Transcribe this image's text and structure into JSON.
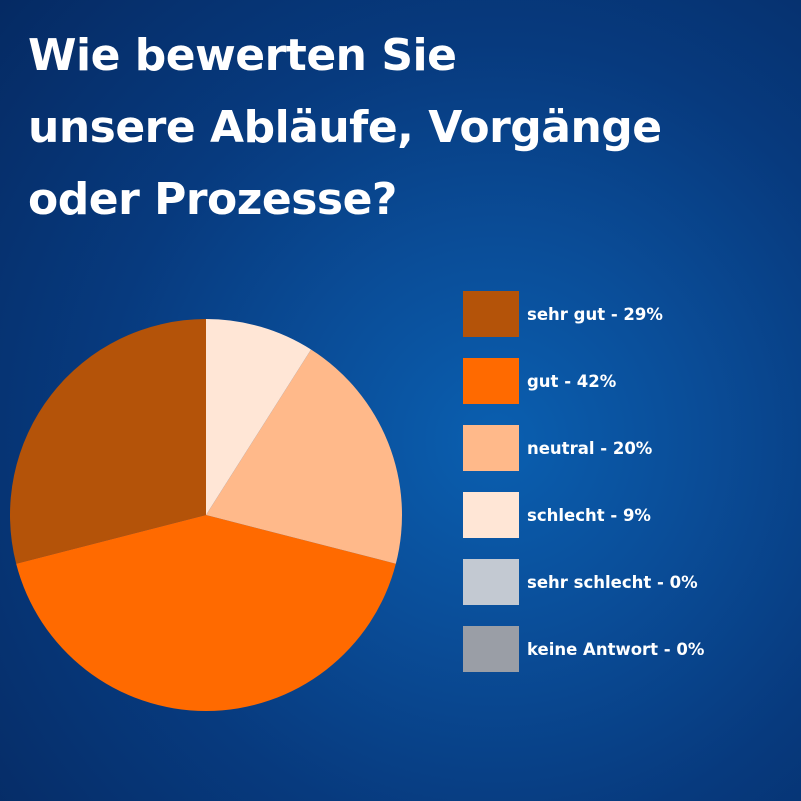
{
  "title_lines": [
    "Wie bewerten Sie",
    "unsere Abläufe, Vorgänge",
    "oder Prozesse?"
  ],
  "chart_data": {
    "type": "pie",
    "title": "Wie bewerten Sie unsere Abläufe, Vorgänge oder Prozesse?",
    "start": "12 o'clock",
    "direction": "counterclockwise",
    "legend_position": "right",
    "slices": [
      {
        "label": "sehr gut - 29%",
        "value": 29,
        "color": "#b45309"
      },
      {
        "label": "gut - 42%",
        "value": 42,
        "color": "#ff6a00"
      },
      {
        "label": "neutral - 20%",
        "value": 20,
        "color": "#ffb98a"
      },
      {
        "label": "schlecht - 9%",
        "value": 9,
        "color": "#ffe6d6"
      },
      {
        "label": "sehr schlecht - 0%",
        "value": 0,
        "color": "#c3c9d2"
      },
      {
        "label": "keine Antwort - 0%",
        "value": 0,
        "color": "#9a9ea6"
      }
    ]
  }
}
